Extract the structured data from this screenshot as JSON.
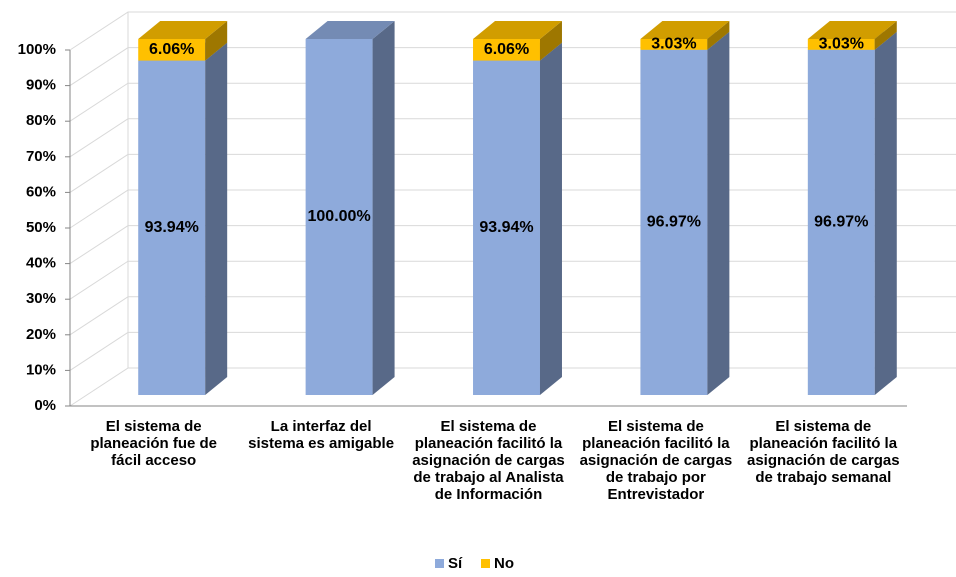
{
  "chart_data": {
    "type": "bar3d_stacked",
    "categories": [
      "El sistema de planeación fue de fácil acceso",
      "La interfaz del sistema es amigable",
      "El sistema de planeación facilitó la asignación de cargas de trabajo al Analista de Información",
      "El sistema de planeación facilitó la asignación de cargas de trabajo por Entrevistador",
      "El sistema de planeación facilitó la asignación de cargas de trabajo semanal"
    ],
    "series": [
      {
        "name": "Sí",
        "color": "#8eaadb",
        "values": [
          93.94,
          100,
          93.94,
          96.97,
          96.97
        ],
        "value_labels": [
          "93.94%",
          "100.00%",
          "93.94%",
          "96.97%",
          "96.97%"
        ]
      },
      {
        "name": "No",
        "color": "#ffc000",
        "values": [
          6.06,
          0,
          6.06,
          3.03,
          3.03
        ],
        "value_labels": [
          "6.06%",
          null,
          "6.06%",
          "3.03%",
          "3.03%"
        ]
      }
    ],
    "ylim": [
      0,
      100
    ],
    "yticks": [
      {
        "value": 0,
        "label": "0%"
      },
      {
        "value": 10,
        "label": "10%"
      },
      {
        "value": 20,
        "label": "20%"
      },
      {
        "value": 30,
        "label": "30%"
      },
      {
        "value": 40,
        "label": "40%"
      },
      {
        "value": 50,
        "label": "50%"
      },
      {
        "value": 60,
        "label": "60%"
      },
      {
        "value": 70,
        "label": "70%"
      },
      {
        "value": 80,
        "label": "80%"
      },
      {
        "value": 90,
        "label": "90%"
      },
      {
        "value": 100,
        "label": "100%"
      }
    ],
    "grid": true,
    "legend": "bottom"
  }
}
